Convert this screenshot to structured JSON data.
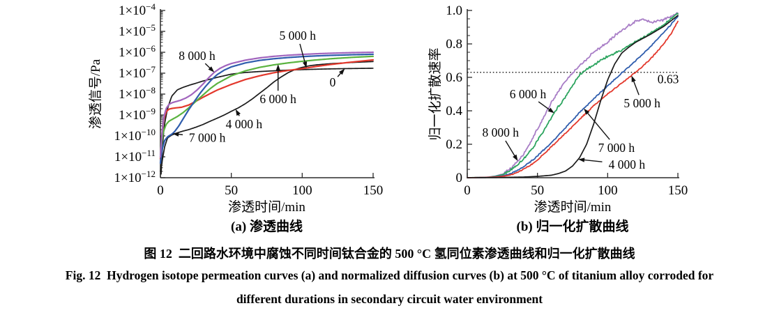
{
  "figure": {
    "caption_zh": "图 12  二回路水环境中腐蚀不同时间钛合金的 500 °C 氢同位素渗透曲线和归一化扩散曲线",
    "caption_en_line1": "Fig. 12  Hydrogen isotope permeation curves (a) and normalized diffusion curves (b) at 500 °C of titanium alloy corroded for",
    "caption_en_line2": "different durations in secondary circuit water environment"
  },
  "chart_data": [
    {
      "id": "a",
      "type": "line",
      "title": "(a) 渗透曲线",
      "xlabel": "渗透时间/min",
      "ylabel": "渗透信号/Pa",
      "xlim": [
        0,
        150
      ],
      "xticks": [
        {
          "v": 0,
          "label": "0"
        },
        {
          "v": 50,
          "label": "50"
        },
        {
          "v": 100,
          "label": "100"
        },
        {
          "v": 150,
          "label": "150"
        }
      ],
      "yscale": "log",
      "ylim": [
        1e-12,
        0.0001
      ],
      "yticks": [
        {
          "v": 0.0001,
          "label": "1×10^−4"
        },
        {
          "v": 1e-05,
          "label": "1×10^−5"
        },
        {
          "v": 1e-06,
          "label": "1×10^−6"
        },
        {
          "v": 1e-07,
          "label": "1×10^−7"
        },
        {
          "v": 1e-08,
          "label": "1×10^−8"
        },
        {
          "v": 1e-09,
          "label": "1×10^−9"
        },
        {
          "v": 1e-10,
          "label": "1×10^−10"
        },
        {
          "v": 1e-11,
          "label": "1×10^−11"
        },
        {
          "v": 1e-12,
          "label": "1×10^−12"
        }
      ],
      "grid": false,
      "legend": "inline-annotations",
      "series": [
        {
          "name": "0",
          "color": "#1a1a1a",
          "lw": 1.7,
          "noise": 0,
          "x": [
            0.5,
            1,
            2,
            3,
            5,
            8,
            12,
            16,
            20,
            25,
            30,
            40,
            50,
            60,
            70,
            80,
            90,
            100,
            115,
            130,
            150
          ],
          "y": [
            1.5e-12,
            8e-12,
            1e-10,
            4e-10,
            2e-09,
            8e-09,
            1.6e-08,
            2.1e-08,
            2.6e-08,
            3.3e-08,
            4.2e-08,
            6.3e-08,
            9e-08,
            1.08e-07,
            1.2e-07,
            1.3e-07,
            1.4e-07,
            1.48e-07,
            1.58e-07,
            1.65e-07,
            1.72e-07
          ]
        },
        {
          "name": "4 000 h",
          "color": "#1a1a1a",
          "lw": 1.7,
          "noise": 0,
          "x": [
            0,
            1,
            3,
            5,
            8,
            12,
            16,
            20,
            25,
            30,
            35,
            40,
            45,
            50,
            55,
            60,
            65,
            70,
            75,
            80,
            85,
            90,
            95,
            100,
            105,
            110,
            120,
            135,
            150
          ],
          "y": [
            2e-12,
            5e-12,
            3e-11,
            8e-11,
            1.1e-10,
            1.4e-10,
            1.7e-10,
            2e-10,
            2.6e-10,
            3.5e-10,
            5e-10,
            7e-10,
            1e-09,
            1.5e-09,
            2.2e-09,
            3.5e-09,
            6e-09,
            1.1e-08,
            2e-08,
            3.8e-08,
            6.5e-08,
            1.05e-07,
            1.5e-07,
            1.9e-07,
            2.25e-07,
            2.5e-07,
            2.85e-07,
            3.25e-07,
            3.6e-07
          ]
        },
        {
          "name": "5 000 h",
          "color": "#e3382c",
          "lw": 2.2,
          "noise": 0,
          "x": [
            0,
            1,
            2,
            4,
            6,
            8,
            10,
            15,
            20,
            25,
            30,
            35,
            40,
            50,
            60,
            70,
            80,
            90,
            100,
            110,
            120,
            135,
            150
          ],
          "y": [
            8e-12,
            1e-10,
            5e-10,
            1.4e-09,
            1.9e-09,
            2.05e-09,
            2.15e-09,
            2.35e-09,
            3e-09,
            4.5e-09,
            7e-09,
            1.05e-08,
            1.55e-08,
            2.9e-08,
            5e-08,
            7.5e-08,
            1.05e-07,
            1.35e-07,
            1.65e-07,
            2.1e-07,
            2.6e-07,
            3.4e-07,
            4.3e-07
          ]
        },
        {
          "name": "6 000 h",
          "color": "#5ab340",
          "lw": 2.2,
          "noise": 0,
          "x": [
            0,
            1,
            2,
            4,
            6,
            8,
            12,
            16,
            20,
            25,
            30,
            35,
            40,
            50,
            60,
            70,
            80,
            90,
            100,
            110,
            120,
            135,
            150
          ],
          "y": [
            1e-11,
            5e-11,
            1.5e-10,
            3.5e-10,
            5e-10,
            6e-10,
            8.5e-10,
            1.3e-09,
            2.2e-09,
            4.5e-09,
            9e-09,
            1.8e-08,
            3.2e-08,
            7.5e-08,
            1.3e-07,
            1.9e-07,
            2.5e-07,
            3.1e-07,
            3.7e-07,
            4.3e-07,
            4.9e-07,
            5.7e-07,
            6.4e-07
          ]
        },
        {
          "name": "7 000 h",
          "color": "#2f5dad",
          "lw": 2.2,
          "noise": 0,
          "x": [
            0,
            1,
            3,
            5,
            8,
            10,
            13,
            16,
            20,
            24,
            28,
            32,
            36,
            40,
            45,
            50,
            60,
            70,
            80,
            90,
            100,
            110,
            120,
            135,
            150
          ],
          "y": [
            5e-12,
            2e-11,
            6e-11,
            9e-11,
            1.2e-10,
            1.6e-10,
            3e-10,
            6.5e-10,
            1.8e-09,
            4.5e-09,
            1.1e-08,
            2.4e-08,
            4.8e-08,
            8.5e-08,
            1.4e-07,
            2e-07,
            3.1e-07,
            4.1e-07,
            4.9e-07,
            5.6e-07,
            6.2e-07,
            6.7e-07,
            7.1e-07,
            7.6e-07,
            8e-07
          ]
        },
        {
          "name": "8 000 h",
          "color": "#a164bd",
          "lw": 2.2,
          "noise": 0,
          "x": [
            0,
            1,
            2,
            4,
            6,
            8,
            10,
            14,
            18,
            22,
            26,
            30,
            34,
            38,
            42,
            46,
            50,
            60,
            70,
            80,
            90,
            100,
            110,
            120,
            135,
            150
          ],
          "y": [
            1e-11,
            1e-10,
            6e-10,
            2e-09,
            3.2e-09,
            3.8e-09,
            4.2e-09,
            5e-09,
            6.5e-09,
            9.5e-09,
            1.6e-08,
            3e-08,
            6e-08,
            1.1e-07,
            1.7e-07,
            2.3e-07,
            2.9e-07,
            4.2e-07,
            5.4e-07,
            6.4e-07,
            7.2e-07,
            7.9e-07,
            8.5e-07,
            9e-07,
            9.6e-07,
            1e-06
          ]
        }
      ],
      "annotations": [
        {
          "text": "5 000 h",
          "target": "5 000 h",
          "at_x": 103,
          "fx": 0.645,
          "fy": 0.15,
          "arrow": true
        },
        {
          "text": "8 000 h",
          "target": "8 000 h",
          "at_x": 38,
          "fx": 0.172,
          "fy": 0.27,
          "arrow": true
        },
        {
          "text": "0",
          "target": "0",
          "at_x": 130,
          "fx": 0.81,
          "fy": 0.43,
          "arrow": true
        },
        {
          "text": "6 000 h",
          "target": "6 000 h",
          "at_x": 83,
          "fx": 0.553,
          "fy": 0.53,
          "arrow": true
        },
        {
          "text": "4 000 h",
          "target": "4 000 h",
          "at_x": 53,
          "fx": 0.393,
          "fy": 0.68,
          "arrow": true
        },
        {
          "text": "7 000 h",
          "target": "7 000 h",
          "at_x": 8.5,
          "fx": 0.22,
          "fy": 0.76,
          "arrow": true
        }
      ]
    },
    {
      "id": "b",
      "type": "line",
      "title": "(b) 归一化扩散曲线",
      "xlabel": "渗透时间/min",
      "ylabel": "归一化扩散速率",
      "xlim": [
        0,
        150
      ],
      "xticks": [
        {
          "v": 0,
          "label": "0"
        },
        {
          "v": 50,
          "label": "50"
        },
        {
          "v": 100,
          "label": "100"
        },
        {
          "v": 150,
          "label": "150"
        }
      ],
      "yscale": "linear",
      "ylim": [
        0,
        1.0
      ],
      "yticks": [
        {
          "v": 0,
          "label": "0"
        },
        {
          "v": 0.2,
          "label": "0.2"
        },
        {
          "v": 0.4,
          "label": "0.4"
        },
        {
          "v": 0.6,
          "label": "0.6"
        },
        {
          "v": 0.8,
          "label": "0.8"
        },
        {
          "v": 1.0,
          "label": "1.0"
        }
      ],
      "grid": false,
      "legend": "inline-annotations",
      "refline": {
        "v": 0.63,
        "style": "dotted"
      },
      "series": [
        {
          "name": "8 000 h",
          "color": "#a87dc6",
          "lw": 1.8,
          "noise": 0.009,
          "x": [
            0,
            10,
            15,
            20,
            25,
            30,
            35,
            40,
            45,
            50,
            55,
            60,
            65,
            70,
            80,
            90,
            95,
            100,
            105,
            110,
            115,
            120,
            125,
            130,
            135,
            140,
            150
          ],
          "y": [
            0,
            0.001,
            0.004,
            0.01,
            0.022,
            0.05,
            0.09,
            0.14,
            0.21,
            0.29,
            0.37,
            0.45,
            0.52,
            0.58,
            0.67,
            0.75,
            0.78,
            0.81,
            0.85,
            0.88,
            0.91,
            0.935,
            0.945,
            0.93,
            0.935,
            0.945,
            0.985
          ]
        },
        {
          "name": "6 000 h",
          "color": "#2ba45e",
          "lw": 1.8,
          "noise": 0.008,
          "x": [
            0,
            15,
            20,
            25,
            30,
            35,
            40,
            45,
            50,
            55,
            60,
            65,
            70,
            80,
            85,
            90,
            100,
            110,
            120,
            130,
            140,
            150
          ],
          "y": [
            0,
            0.003,
            0.008,
            0.018,
            0.04,
            0.07,
            0.11,
            0.16,
            0.22,
            0.29,
            0.36,
            0.425,
            0.485,
            0.615,
            0.65,
            0.675,
            0.725,
            0.765,
            0.815,
            0.86,
            0.915,
            0.985
          ]
        },
        {
          "name": "7 000 h",
          "color": "#2f5dad",
          "lw": 1.8,
          "noise": 0.0045,
          "x": [
            0,
            15,
            20,
            25,
            30,
            35,
            40,
            45,
            50,
            55,
            60,
            70,
            80,
            90,
            100,
            110,
            120,
            130,
            140,
            145,
            150
          ],
          "y": [
            0,
            0.002,
            0.005,
            0.011,
            0.022,
            0.04,
            0.065,
            0.095,
            0.13,
            0.17,
            0.21,
            0.3,
            0.39,
            0.47,
            0.55,
            0.625,
            0.7,
            0.78,
            0.87,
            0.915,
            0.965
          ]
        },
        {
          "name": "5 000 h",
          "color": "#e3382c",
          "lw": 1.8,
          "noise": 0.0045,
          "x": [
            0,
            15,
            20,
            25,
            30,
            35,
            40,
            45,
            50,
            55,
            60,
            70,
            80,
            90,
            100,
            110,
            120,
            130,
            140,
            145,
            150
          ],
          "y": [
            0,
            0.002,
            0.004,
            0.008,
            0.015,
            0.03,
            0.05,
            0.075,
            0.105,
            0.145,
            0.185,
            0.265,
            0.35,
            0.43,
            0.5,
            0.565,
            0.63,
            0.705,
            0.8,
            0.86,
            0.935
          ]
        },
        {
          "name": "4 000 h",
          "color": "#1a1a1a",
          "lw": 1.7,
          "noise": 0,
          "x": [
            0,
            20,
            40,
            50,
            60,
            65,
            70,
            75,
            80,
            85,
            90,
            95,
            100,
            105,
            110,
            115,
            120,
            130,
            140,
            150
          ],
          "y": [
            0,
            0.001,
            0.004,
            0.008,
            0.015,
            0.025,
            0.04,
            0.07,
            0.12,
            0.2,
            0.32,
            0.46,
            0.585,
            0.68,
            0.745,
            0.78,
            0.81,
            0.855,
            0.905,
            0.97
          ]
        }
      ],
      "annotations": [
        {
          "text": "6 000 h",
          "target": "6 000 h",
          "at_x": 62,
          "fx": 0.288,
          "fy": 0.5,
          "arrow": true
        },
        {
          "text": "8 000 h",
          "target": "8 000 h",
          "at_x": 36,
          "fx": 0.158,
          "fy": 0.73,
          "arrow": true
        },
        {
          "text": "5 000 h",
          "target": "5 000 h",
          "at_x": 117,
          "fx": 0.83,
          "fy": 0.555,
          "arrow": true
        },
        {
          "text": "7 000 h",
          "target": "7 000 h",
          "at_x": 83,
          "fx": 0.708,
          "fy": 0.82,
          "arrow": true
        },
        {
          "text": "4 000 h",
          "target": "4 000 h",
          "at_x": 79,
          "fx": 0.758,
          "fy": 0.92,
          "arrow": true
        },
        {
          "text": "0.63",
          "fx": 0.954,
          "fy": 0.41,
          "arrow": false
        }
      ]
    }
  ]
}
